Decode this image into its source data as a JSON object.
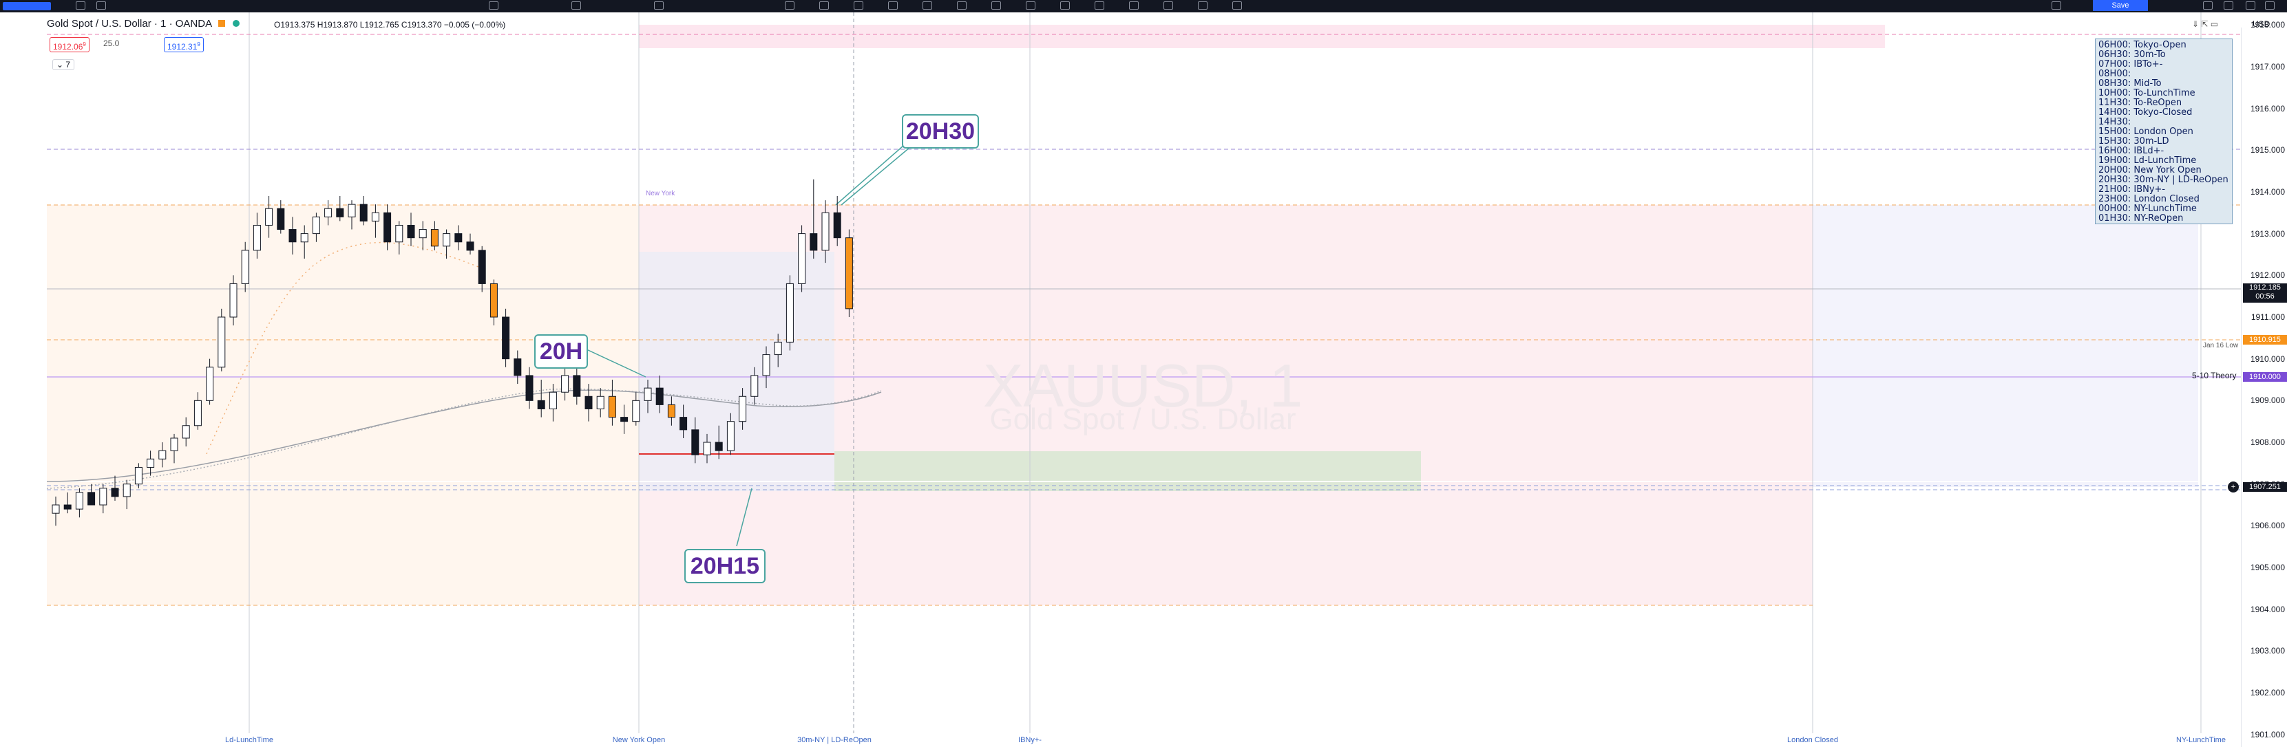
{
  "header": {
    "symbol_title": "Gold Spot / U.S. Dollar · 1 · OANDA",
    "ohlc": "O1913.375 H1913.870 L1912.765 C1913.370 −0.005 (−0.00%)",
    "sell_price": "1912.06",
    "sell_superscript": "9",
    "spread": "25.0",
    "buy_price": "1912.31",
    "buy_superscript": "9",
    "collapse_count": "7"
  },
  "toolbar": {
    "save_label": "Save",
    "currency_label": "USD"
  },
  "watermark": {
    "symbol": "XAUUSD, 1",
    "name": "Gold Spot / U.S. Dollar"
  },
  "session_legend": [
    "06H00: Tokyo-Open",
    "06H30: 30m-To",
    "07H00: IBTo+-",
    "08H00: ",
    "08H30: Mid-To",
    "10H00: To-LunchTime",
    "11H30: To-ReOpen",
    "14H00: Tokyo-Closed",
    "14H30: ",
    "15H00: London Open",
    "15H30: 30m-LD",
    "16H00: IBLd+-",
    "19H00: Ld-LunchTime",
    "20H00: New York Open",
    "20H30: 30m-NY | LD-ReOpen",
    "21H00: IBNy+-",
    "23H00: London Closed",
    "00H00: NY-LunchTime",
    "01H30: NY-ReOpen"
  ],
  "callouts": {
    "c20h": "20H",
    "c20h15": "20H15",
    "c20h30": "20H30"
  },
  "annotations": {
    "new_york": "New York",
    "jan16_low": "Jan 16 Low",
    "theory": "5-10 Theory"
  },
  "price_labels": {
    "last_price": "1912.185",
    "countdown": "00:56",
    "orange_level": "1910.915",
    "purple_level": "1910.000",
    "bottom_level": "1907.251"
  },
  "chart_data": {
    "type": "candlestick",
    "y_ticks": [
      "1918.000",
      "1917.000",
      "1916.000",
      "1915.000",
      "1914.000",
      "1913.000",
      "1912.000",
      "1911.000",
      "1910.000",
      "1909.000",
      "1908.000",
      "1907.000",
      "1906.000",
      "1905.000",
      "1904.000",
      "1903.000",
      "1902.000",
      "1901.000"
    ],
    "x_labels": [
      "Ld-LunchTime",
      "New York Open",
      "30m-NY | LD-ReOpen",
      "IBNy+-",
      "London Closed",
      "NY-LunchTime"
    ],
    "ylim": [
      1900.7,
      1918.3
    ],
    "ohlc_series": [
      [
        1906.3,
        1906.7,
        1906.0,
        1906.5
      ],
      [
        1906.5,
        1906.8,
        1906.3,
        1906.4
      ],
      [
        1906.4,
        1906.9,
        1906.2,
        1906.8
      ],
      [
        1906.8,
        1907.0,
        1906.6,
        1906.5
      ],
      [
        1906.5,
        1907.0,
        1906.3,
        1906.9
      ],
      [
        1906.9,
        1907.2,
        1906.6,
        1906.7
      ],
      [
        1906.7,
        1907.1,
        1906.4,
        1907.0
      ],
      [
        1907.0,
        1907.5,
        1906.9,
        1907.4
      ],
      [
        1907.4,
        1907.8,
        1907.2,
        1907.6
      ],
      [
        1907.6,
        1908.0,
        1907.4,
        1907.8
      ],
      [
        1907.8,
        1908.2,
        1907.5,
        1908.1
      ],
      [
        1908.1,
        1908.6,
        1907.9,
        1908.4
      ],
      [
        1908.4,
        1909.2,
        1908.3,
        1909.0
      ],
      [
        1909.0,
        1910.0,
        1908.9,
        1909.8
      ],
      [
        1909.8,
        1911.2,
        1909.7,
        1911.0
      ],
      [
        1911.0,
        1912.0,
        1910.8,
        1911.8
      ],
      [
        1911.8,
        1912.8,
        1911.6,
        1912.6
      ],
      [
        1912.6,
        1913.5,
        1912.4,
        1913.2
      ],
      [
        1913.2,
        1913.9,
        1912.9,
        1913.6
      ],
      [
        1913.6,
        1913.8,
        1913.0,
        1913.1
      ],
      [
        1913.1,
        1913.4,
        1912.5,
        1912.8
      ],
      [
        1912.8,
        1913.2,
        1912.4,
        1913.0
      ],
      [
        1913.0,
        1913.5,
        1912.8,
        1913.4
      ],
      [
        1913.4,
        1913.8,
        1913.2,
        1913.6
      ],
      [
        1913.6,
        1913.9,
        1913.3,
        1913.4
      ],
      [
        1913.4,
        1913.8,
        1913.1,
        1913.7
      ],
      [
        1913.7,
        1913.9,
        1913.2,
        1913.3
      ],
      [
        1913.3,
        1913.7,
        1912.9,
        1913.5
      ],
      [
        1913.5,
        1913.7,
        1912.6,
        1912.8
      ],
      [
        1912.8,
        1913.3,
        1912.5,
        1913.2
      ],
      [
        1913.2,
        1913.5,
        1912.7,
        1912.9
      ],
      [
        1912.9,
        1913.3,
        1912.6,
        1913.1
      ],
      [
        1913.1,
        1913.3,
        1912.6,
        1912.7
      ],
      [
        1912.7,
        1913.1,
        1912.4,
        1913.0
      ],
      [
        1913.0,
        1913.2,
        1912.6,
        1912.8
      ],
      [
        1912.8,
        1913.0,
        1912.5,
        1912.6
      ],
      [
        1912.6,
        1912.7,
        1911.6,
        1911.8
      ],
      [
        1911.8,
        1911.9,
        1910.8,
        1911.0
      ],
      [
        1911.0,
        1911.2,
        1909.8,
        1910.0
      ],
      [
        1910.0,
        1910.2,
        1909.4,
        1909.6
      ],
      [
        1909.6,
        1909.8,
        1908.8,
        1909.0
      ],
      [
        1909.0,
        1909.5,
        1908.6,
        1908.8
      ],
      [
        1908.8,
        1909.4,
        1908.5,
        1909.2
      ],
      [
        1909.2,
        1909.9,
        1909.0,
        1909.6
      ],
      [
        1909.6,
        1910.1,
        1908.9,
        1909.1
      ],
      [
        1909.1,
        1909.4,
        1908.5,
        1908.8
      ],
      [
        1908.8,
        1909.3,
        1908.6,
        1909.1
      ],
      [
        1909.1,
        1909.5,
        1908.4,
        1908.6
      ],
      [
        1908.6,
        1908.9,
        1908.2,
        1908.5
      ],
      [
        1908.5,
        1909.2,
        1908.4,
        1909.0
      ],
      [
        1909.0,
        1909.5,
        1908.7,
        1909.3
      ],
      [
        1909.3,
        1909.6,
        1908.7,
        1908.9
      ],
      [
        1908.9,
        1909.1,
        1908.4,
        1908.6
      ],
      [
        1908.6,
        1908.9,
        1908.1,
        1908.3
      ],
      [
        1908.3,
        1908.6,
        1907.5,
        1907.7
      ],
      [
        1907.7,
        1908.2,
        1907.5,
        1908.0
      ],
      [
        1908.0,
        1908.4,
        1907.6,
        1907.8
      ],
      [
        1907.8,
        1908.7,
        1907.7,
        1908.5
      ],
      [
        1908.5,
        1909.3,
        1908.3,
        1909.1
      ],
      [
        1909.1,
        1909.8,
        1908.9,
        1909.6
      ],
      [
        1909.6,
        1910.3,
        1909.3,
        1910.1
      ],
      [
        1910.1,
        1910.6,
        1909.8,
        1910.4
      ],
      [
        1910.4,
        1912.0,
        1910.2,
        1911.8
      ],
      [
        1911.8,
        1913.2,
        1911.6,
        1913.0
      ],
      [
        1913.0,
        1914.3,
        1912.4,
        1912.6
      ],
      [
        1912.6,
        1913.8,
        1912.3,
        1913.5
      ],
      [
        1913.5,
        1913.9,
        1912.7,
        1912.9
      ],
      [
        1912.9,
        1913.1,
        1911.0,
        1911.2
      ]
    ]
  }
}
